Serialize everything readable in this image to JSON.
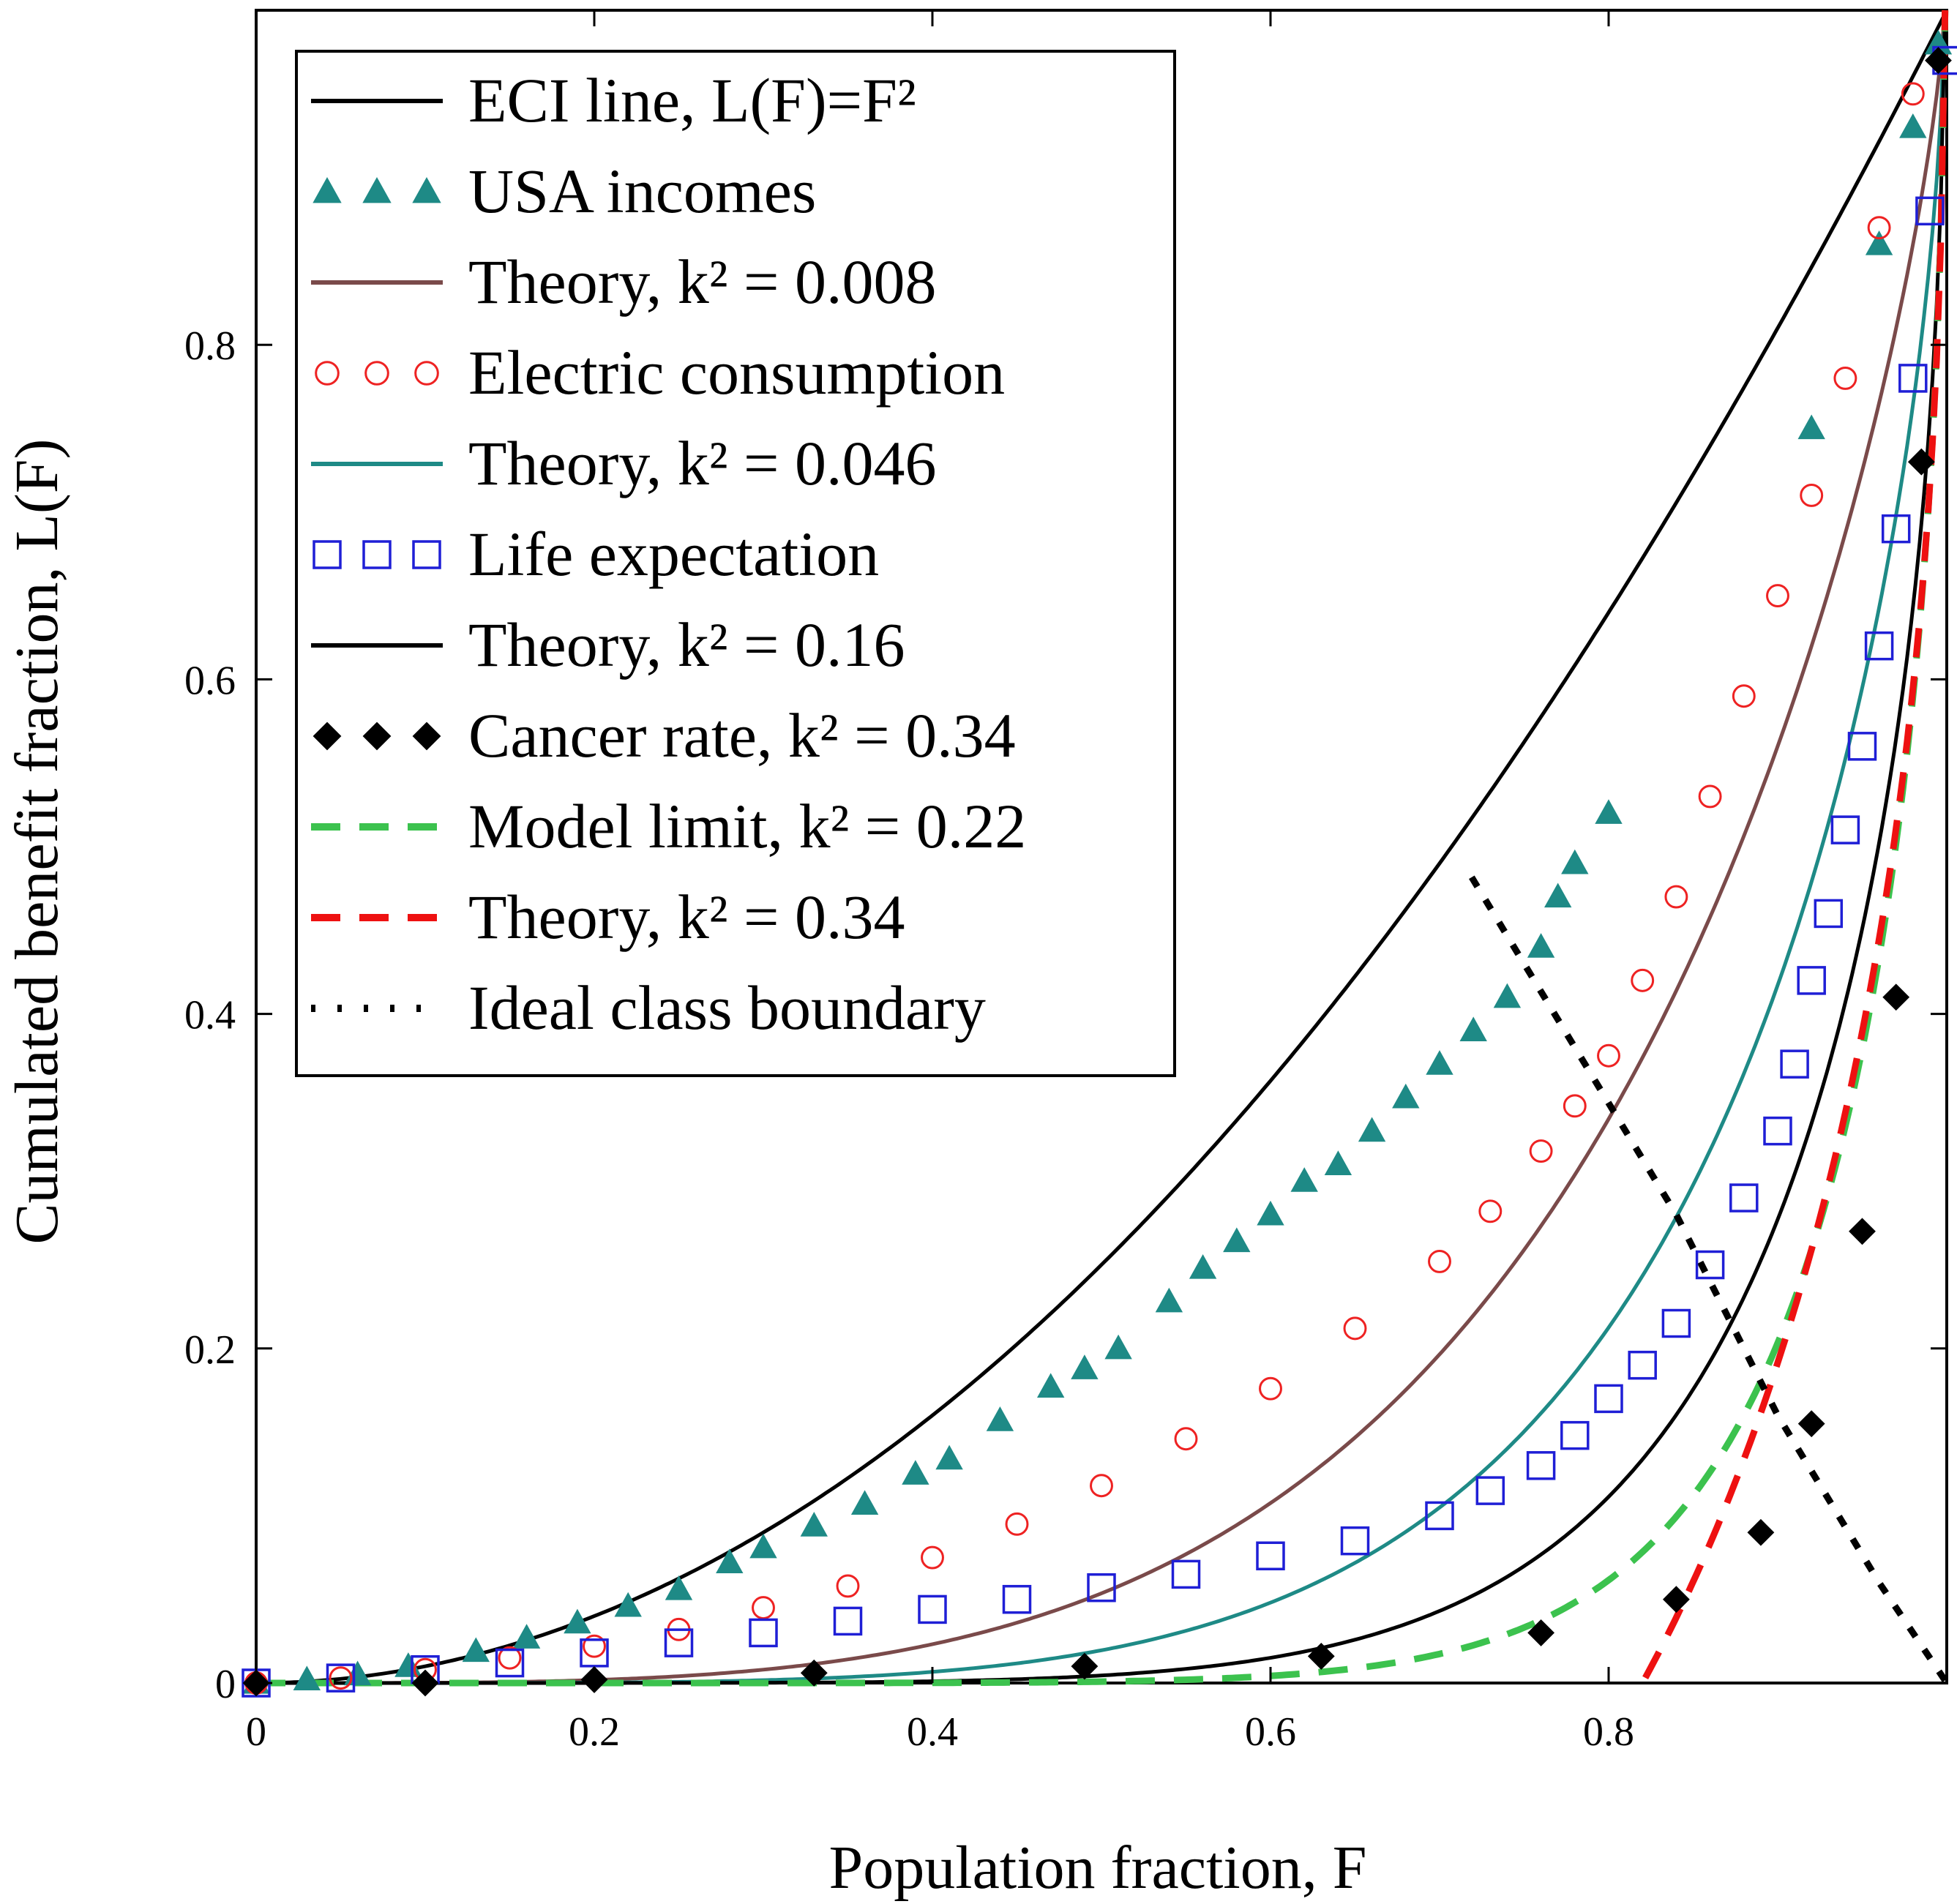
{
  "chart_data": {
    "type": "scatter",
    "xlabel": "Population fraction, F",
    "ylabel": "Cumulated benefit fraction, L(F)",
    "xlim": [
      0,
      1
    ],
    "ylim": [
      0,
      1
    ],
    "x_ticks": [
      0,
      0.2,
      0.4,
      0.6,
      0.8
    ],
    "x_tick_labels": [
      "0",
      "0.2",
      "0.4",
      "0.6",
      "0.8"
    ],
    "y_ticks": [
      0,
      0.2,
      0.4,
      0.6,
      0.8
    ],
    "y_tick_labels": [
      "0",
      "0.2",
      "0.4",
      "0.6",
      "0.8"
    ],
    "grid": false,
    "legend_position": "top-left",
    "series": [
      {
        "name": "ECI line, L(F)=F²",
        "kind": "line",
        "color": "#000000",
        "style": "solid",
        "formula": "F^2"
      },
      {
        "name": "USA incomes",
        "kind": "markers",
        "marker": "triangle",
        "color": "#1e8a86",
        "x": [
          0.0,
          0.03,
          0.06,
          0.09,
          0.13,
          0.16,
          0.19,
          0.22,
          0.25,
          0.28,
          0.3,
          0.33,
          0.36,
          0.39,
          0.41,
          0.44,
          0.47,
          0.49,
          0.51,
          0.54,
          0.56,
          0.58,
          0.6,
          0.62,
          0.64,
          0.66,
          0.68,
          0.7,
          0.72,
          0.74,
          0.76,
          0.77,
          0.78,
          0.8,
          0.92,
          0.96,
          0.98,
          0.995
        ],
        "y": [
          0.0,
          0.002,
          0.005,
          0.01,
          0.019,
          0.027,
          0.036,
          0.046,
          0.056,
          0.072,
          0.081,
          0.094,
          0.107,
          0.125,
          0.134,
          0.157,
          0.177,
          0.188,
          0.2,
          0.228,
          0.248,
          0.264,
          0.28,
          0.3,
          0.31,
          0.33,
          0.35,
          0.37,
          0.39,
          0.41,
          0.44,
          0.47,
          0.49,
          0.52,
          0.75,
          0.86,
          0.93,
          0.98
        ]
      },
      {
        "name": "Theory, k² = 0.008",
        "kind": "line",
        "color": "#7a4a4a",
        "style": "solid"
      },
      {
        "name": "Electric consumption",
        "kind": "markers",
        "marker": "circle",
        "color": "#ee2222",
        "x": [
          0.0,
          0.05,
          0.1,
          0.15,
          0.2,
          0.25,
          0.3,
          0.35,
          0.4,
          0.45,
          0.5,
          0.55,
          0.6,
          0.65,
          0.7,
          0.73,
          0.76,
          0.78,
          0.8,
          0.82,
          0.84,
          0.86,
          0.88,
          0.9,
          0.92,
          0.94,
          0.96,
          0.98
        ],
        "y": [
          0.0,
          0.003,
          0.008,
          0.015,
          0.022,
          0.032,
          0.045,
          0.058,
          0.075,
          0.095,
          0.118,
          0.146,
          0.176,
          0.212,
          0.252,
          0.282,
          0.318,
          0.345,
          0.375,
          0.42,
          0.47,
          0.53,
          0.59,
          0.65,
          0.71,
          0.78,
          0.87,
          0.95
        ]
      },
      {
        "name": "Theory, k² = 0.046",
        "kind": "line",
        "color": "#1e8a86",
        "style": "solid"
      },
      {
        "name": "Life expectation",
        "kind": "markers",
        "marker": "square",
        "color": "#1f1fd6",
        "x": [
          0.0,
          0.05,
          0.1,
          0.15,
          0.2,
          0.25,
          0.3,
          0.35,
          0.4,
          0.45,
          0.5,
          0.55,
          0.6,
          0.65,
          0.7,
          0.73,
          0.76,
          0.78,
          0.8,
          0.82,
          0.84,
          0.86,
          0.88,
          0.9,
          0.91,
          0.92,
          0.93,
          0.94,
          0.95,
          0.96,
          0.97,
          0.98,
          0.99,
          1.0
        ],
        "y": [
          0.0,
          0.003,
          0.008,
          0.012,
          0.018,
          0.024,
          0.03,
          0.037,
          0.044,
          0.05,
          0.057,
          0.065,
          0.076,
          0.085,
          0.1,
          0.115,
          0.13,
          0.148,
          0.17,
          0.19,
          0.215,
          0.25,
          0.29,
          0.33,
          0.37,
          0.42,
          0.46,
          0.51,
          0.56,
          0.62,
          0.69,
          0.78,
          0.88,
          0.97
        ]
      },
      {
        "name": "Theory, k² = 0.16",
        "kind": "line",
        "color": "#000000",
        "style": "solid"
      },
      {
        "name": "Cancer rate, k² = 0.34",
        "kind": "markers",
        "marker": "diamond",
        "color": "#000000",
        "x": [
          0.0,
          0.1,
          0.2,
          0.33,
          0.49,
          0.63,
          0.76,
          0.84,
          0.89,
          0.92,
          0.95,
          0.97,
          0.985,
          0.995
        ],
        "y": [
          0.0,
          0.0,
          0.002,
          0.006,
          0.01,
          0.016,
          0.03,
          0.05,
          0.09,
          0.155,
          0.27,
          0.41,
          0.73,
          0.97
        ]
      },
      {
        "name": "Model limit, k² = 0.22",
        "kind": "line",
        "color": "#3cc24e",
        "style": "dashed"
      },
      {
        "name": "Theory, k² = 0.34",
        "kind": "line",
        "color": "#ee1111",
        "style": "dashed"
      },
      {
        "name": "Ideal class boundary",
        "kind": "line",
        "color": "#000000",
        "style": "dotted",
        "x": [
          0.72,
          0.75,
          0.78,
          0.81,
          0.84,
          0.87,
          0.9,
          0.93,
          0.96,
          0.98,
          1.0
        ],
        "y": [
          0.48,
          0.43,
          0.38,
          0.33,
          0.28,
          0.22,
          0.16,
          0.11,
          0.06,
          0.03,
          0.0
        ]
      }
    ]
  }
}
